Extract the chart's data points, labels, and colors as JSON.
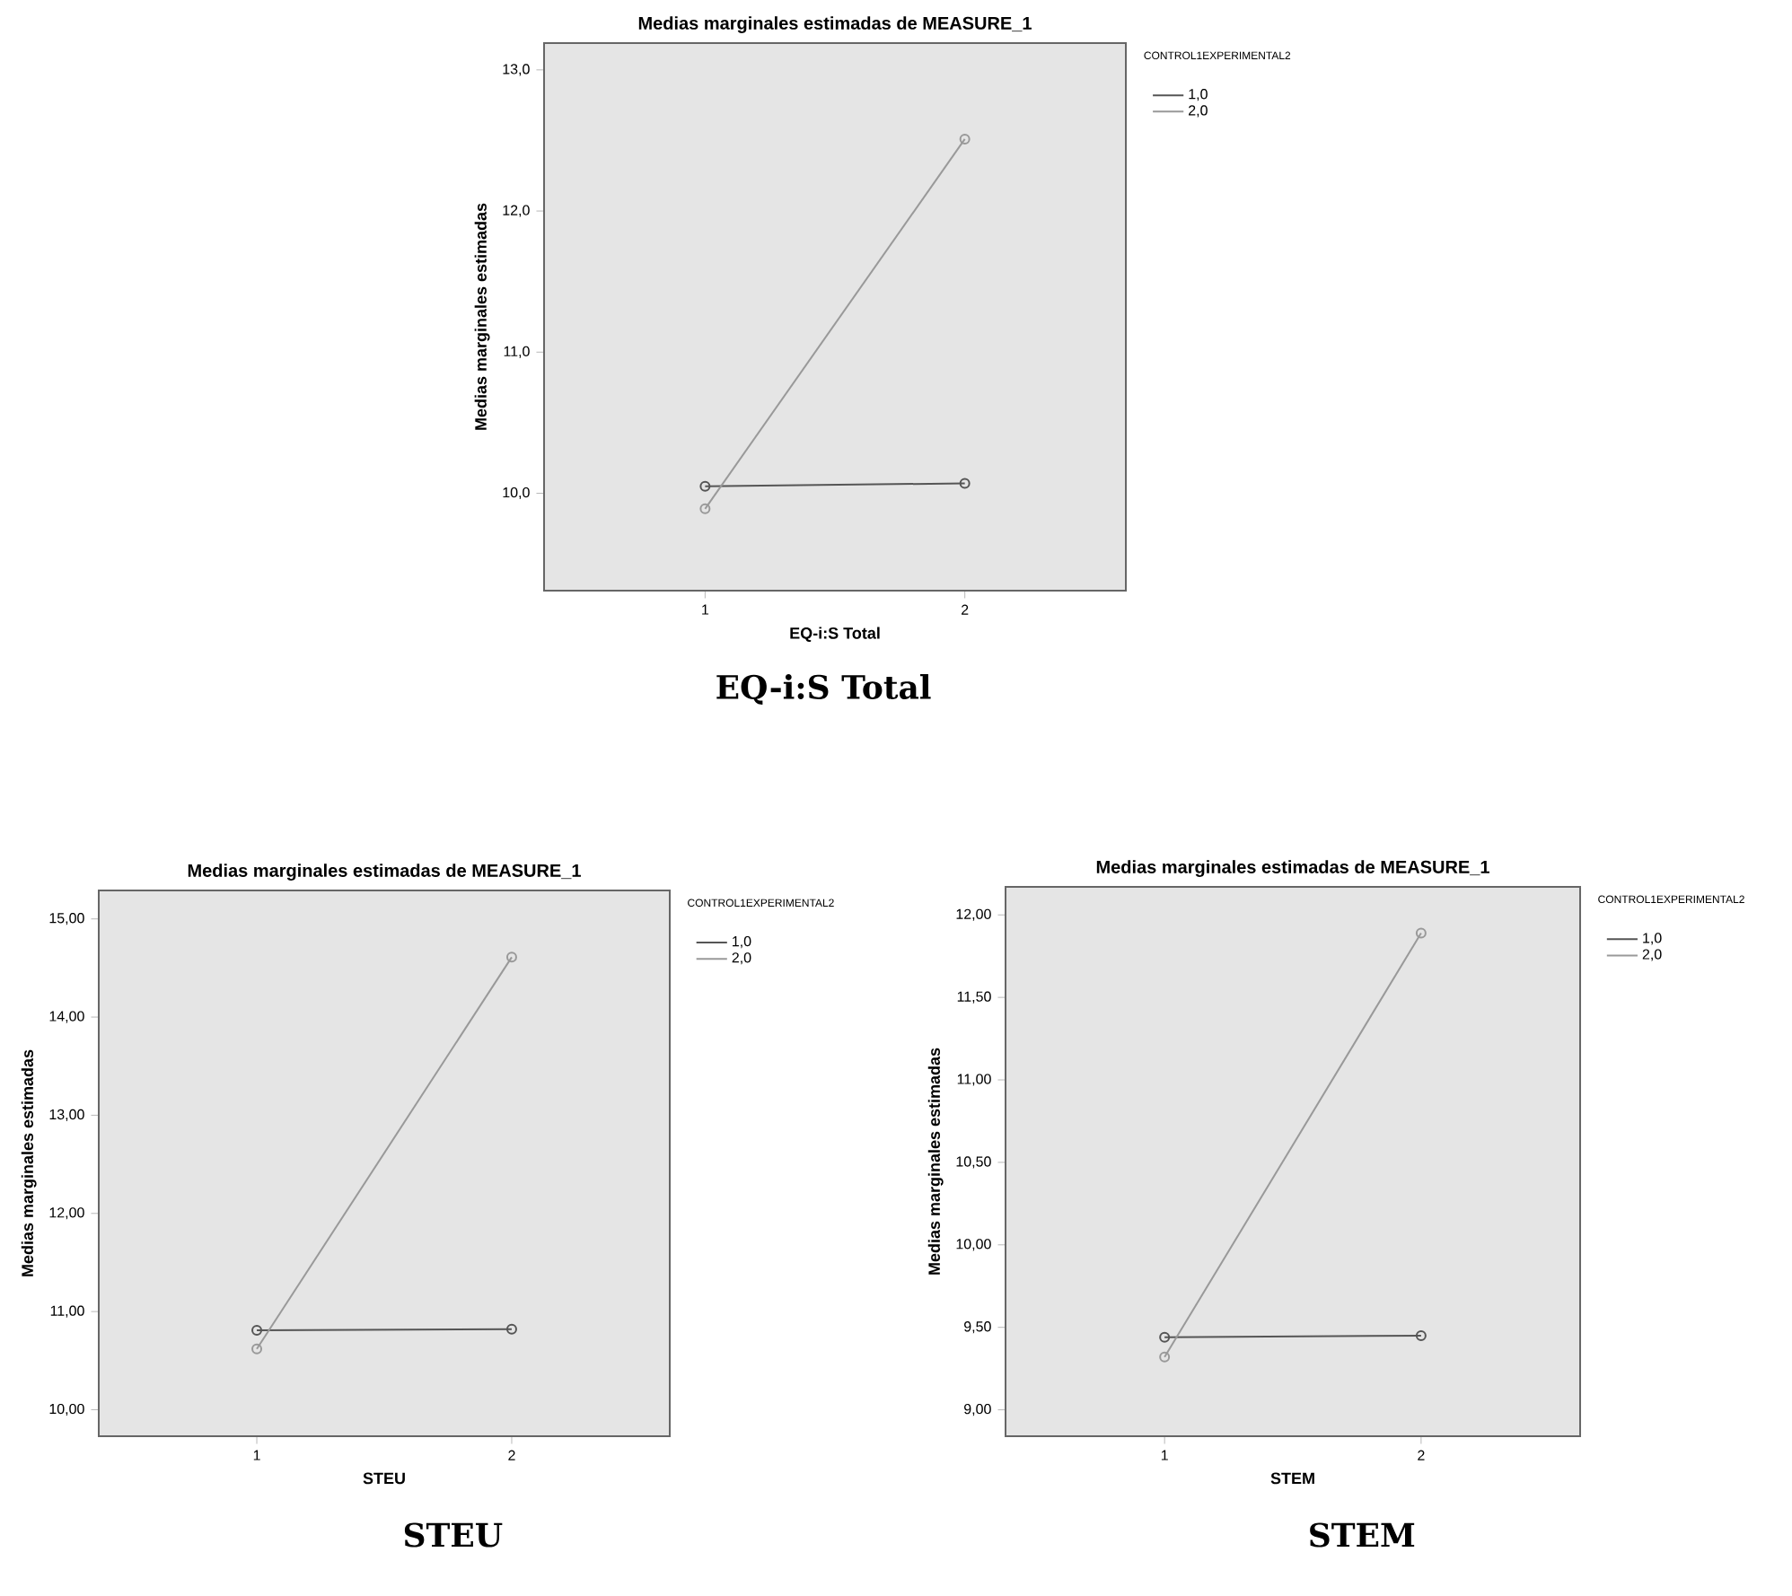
{
  "chart_data": [
    {
      "type": "line",
      "title": "Medias marginales estimadas de MEASURE_1",
      "xlabel": "EQ-i:S Total",
      "ylabel": "Medias marginales estimadas",
      "legend_title": "CONTROL1EXPERIMENTAL2",
      "categories": [
        "1",
        "2"
      ],
      "series": [
        {
          "name": "1,0",
          "color": "#555555",
          "values": [
            10.05,
            10.07
          ]
        },
        {
          "name": "2,0",
          "color": "#999999",
          "values": [
            9.89,
            12.51
          ]
        }
      ],
      "ylim": [
        9.31,
        13.19
      ],
      "yticks": [
        {
          "value": 10,
          "label": "10,0"
        },
        {
          "value": 11,
          "label": "11,0"
        },
        {
          "value": 12,
          "label": "12,0"
        },
        {
          "value": 13,
          "label": "13,0"
        }
      ],
      "grid": false,
      "legend": "top right",
      "marker": "circle",
      "line_style": "solid",
      "annotations": [
        "EQ-i:S Total"
      ]
    },
    {
      "type": "line",
      "title": "Medias marginales estimadas de MEASURE_1",
      "xlabel": "STEU",
      "ylabel": "Medias marginales estimadas",
      "legend_title": "CONTROL1EXPERIMENTAL2",
      "categories": [
        "1",
        "2"
      ],
      "series": [
        {
          "name": "1,0",
          "color": "#555555",
          "values": [
            10.81,
            10.82
          ]
        },
        {
          "name": "2,0",
          "color": "#999999",
          "values": [
            10.62,
            14.61
          ]
        }
      ],
      "ylim": [
        9.73,
        15.29
      ],
      "yticks": [
        {
          "value": 10,
          "label": "10,00"
        },
        {
          "value": 11,
          "label": "11,00"
        },
        {
          "value": 12,
          "label": "12,00"
        },
        {
          "value": 13,
          "label": "13,00"
        },
        {
          "value": 14,
          "label": "14,00"
        },
        {
          "value": 15,
          "label": "15,00"
        }
      ],
      "grid": false,
      "legend": "top right",
      "marker": "circle",
      "line_style": "solid",
      "annotations": [
        "STEU"
      ]
    },
    {
      "type": "line",
      "title": "Medias marginales estimadas de MEASURE_1",
      "xlabel": "STEM",
      "ylabel": "Medias marginales estimadas",
      "legend_title": "CONTROL1EXPERIMENTAL2",
      "categories": [
        "1",
        "2"
      ],
      "series": [
        {
          "name": "1,0",
          "color": "#555555",
          "values": [
            9.44,
            9.45
          ]
        },
        {
          "name": "2,0",
          "color": "#999999",
          "values": [
            9.32,
            11.89
          ]
        }
      ],
      "ylim": [
        8.84,
        12.17
      ],
      "yticks": [
        {
          "value": 9,
          "label": "9,00"
        },
        {
          "value": 9.5,
          "label": "9,50"
        },
        {
          "value": 10,
          "label": "10,00"
        },
        {
          "value": 10.5,
          "label": "10,50"
        },
        {
          "value": 11,
          "label": "11,00"
        },
        {
          "value": 11.5,
          "label": "11,50"
        },
        {
          "value": 12,
          "label": "12,00"
        }
      ],
      "grid": false,
      "legend": "top right",
      "marker": "circle",
      "line_style": "solid",
      "annotations": [
        "STEM"
      ]
    }
  ]
}
